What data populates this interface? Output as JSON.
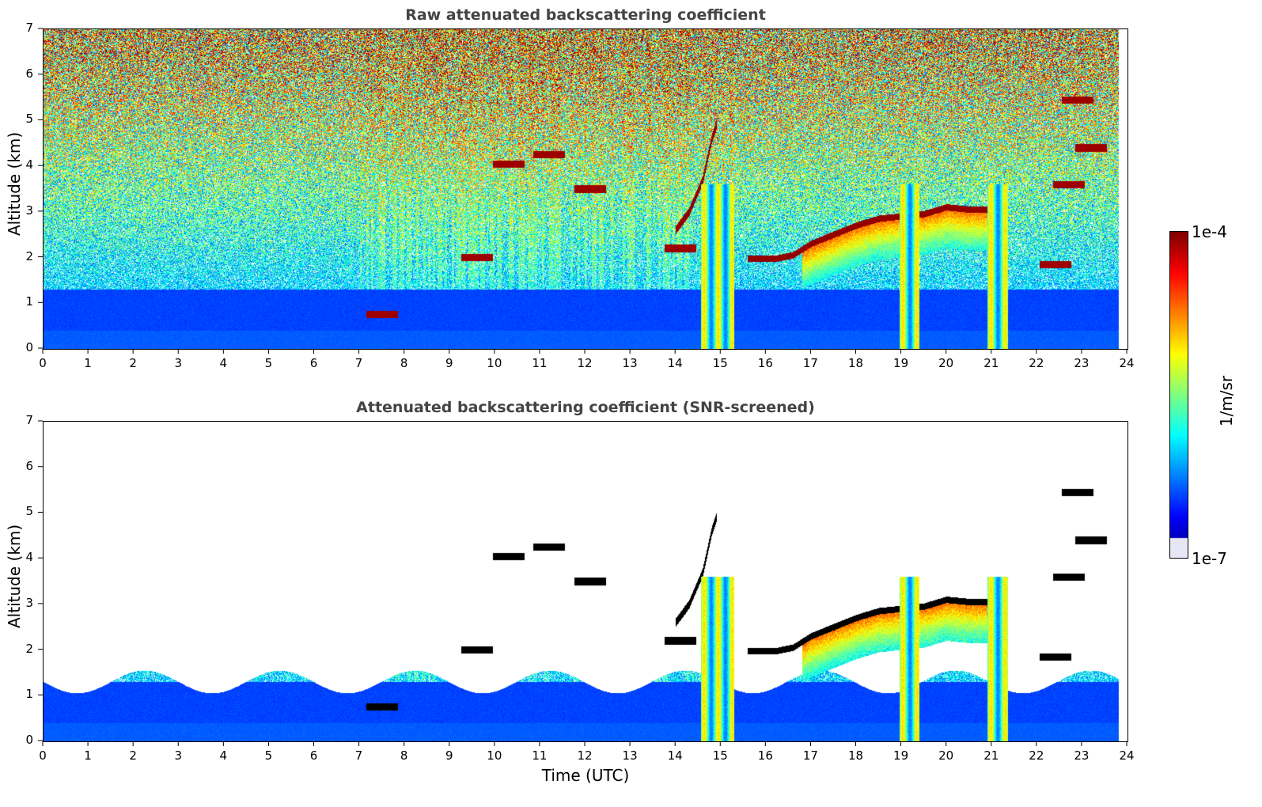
{
  "chart_data": [
    {
      "type": "heatmap",
      "title": "Raw attenuated backscattering coefficient",
      "xlabel": "",
      "ylabel": "Altitude (km)",
      "xlim": [
        0,
        24
      ],
      "ylim": [
        0,
        7
      ],
      "x_ticks": [
        "0",
        "1",
        "2",
        "3",
        "4",
        "5",
        "6",
        "7",
        "8",
        "9",
        "10",
        "11",
        "12",
        "13",
        "14",
        "15",
        "16",
        "17",
        "18",
        "19",
        "20",
        "21",
        "22",
        "23",
        "24"
      ],
      "y_ticks": [
        "0",
        "1",
        "2",
        "3",
        "4",
        "5",
        "6",
        "7"
      ],
      "screened": false,
      "data_end_hour": 23.8
    },
    {
      "type": "heatmap",
      "title": "Attenuated backscattering coefficient (SNR-screened)",
      "xlabel": "Time (UTC)",
      "ylabel": "Altitude (km)",
      "xlim": [
        0,
        24
      ],
      "ylim": [
        0,
        7
      ],
      "x_ticks": [
        "0",
        "1",
        "2",
        "3",
        "4",
        "5",
        "6",
        "7",
        "8",
        "9",
        "10",
        "11",
        "12",
        "13",
        "14",
        "15",
        "16",
        "17",
        "18",
        "19",
        "20",
        "21",
        "22",
        "23",
        "24"
      ],
      "y_ticks": [
        "0",
        "1",
        "2",
        "3",
        "4",
        "5",
        "6",
        "7"
      ],
      "screened": true,
      "data_end_hour": 23.8
    }
  ],
  "colorbar": {
    "label": "1/m/sr",
    "max_label": "1e-4",
    "min_label": "1e-7",
    "colormap": "jet",
    "scale": "log",
    "low_color": "#e6e6f5",
    "high_color": "#800000"
  },
  "features": {
    "cloud_layer": [
      [
        15.6,
        1.97
      ],
      [
        16.2,
        1.97
      ],
      [
        16.6,
        2.05
      ],
      [
        17.0,
        2.3
      ],
      [
        17.5,
        2.5
      ],
      [
        18.0,
        2.7
      ],
      [
        18.5,
        2.85
      ],
      [
        19.0,
        2.9
      ],
      [
        19.5,
        2.95
      ],
      [
        20.0,
        3.1
      ],
      [
        20.5,
        3.05
      ],
      [
        21.0,
        3.05
      ]
    ],
    "rising_streak": [
      [
        14.0,
        2.6
      ],
      [
        14.3,
        3.0
      ],
      [
        14.6,
        3.7
      ],
      [
        14.8,
        4.6
      ],
      [
        14.9,
        4.9
      ]
    ],
    "precip_shafts": [
      [
        14.55,
        15.3
      ],
      [
        18.95,
        19.4
      ],
      [
        20.9,
        21.35
      ]
    ],
    "elevated_patches": [
      [
        10.3,
        4.05
      ],
      [
        11.2,
        4.25
      ],
      [
        12.1,
        3.5
      ],
      [
        14.1,
        2.2
      ],
      [
        9.6,
        2.0
      ],
      [
        23.2,
        4.4
      ],
      [
        22.9,
        5.45
      ],
      [
        22.7,
        3.6
      ],
      [
        7.5,
        0.75
      ],
      [
        22.4,
        1.85
      ]
    ]
  }
}
